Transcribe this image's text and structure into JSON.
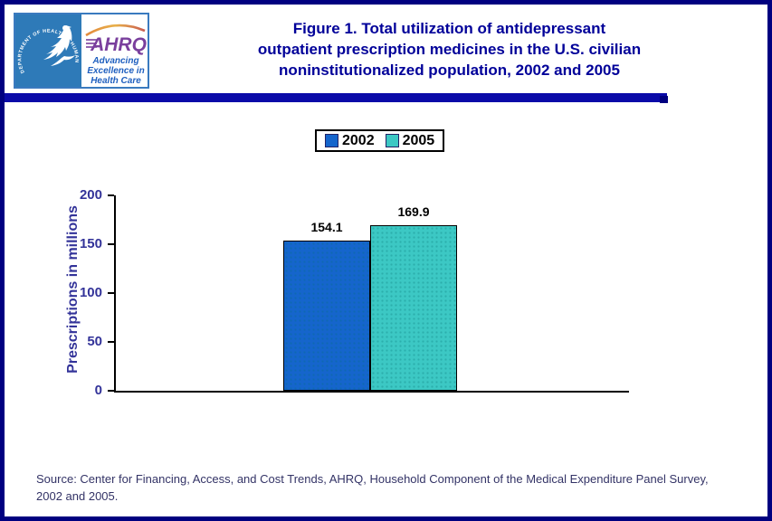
{
  "header": {
    "title_lines": [
      "Figure 1. Total utilization of antidepressant",
      "outpatient prescription medicines in the U.S. civilian",
      "noninstitutionalized population, 2002 and 2005"
    ],
    "logo": {
      "hhs_circle_text": "DEPARTMENT OF HEALTH & HUMAN SERVICES • USA",
      "ahrq": "AHRQ",
      "tagline": [
        "Advancing",
        "Excellence in",
        "Health Care"
      ],
      "ahrq_color": "#7a3f9d",
      "tagline_color": "#1f5fbf",
      "hhs_blue": "#2e7ab8"
    }
  },
  "chart_data": {
    "type": "bar",
    "title": "Figure 1. Total utilization of antidepressant outpatient prescription medicines in the U.S. civilian noninstitutionalized population, 2002 and 2005",
    "categories": [
      "2002",
      "2005"
    ],
    "series": [
      {
        "name": "2002",
        "value": 154.1,
        "color": "#1565cc"
      },
      {
        "name": "2005",
        "value": 169.9,
        "color": "#3cc8c4"
      }
    ],
    "value_labels": [
      "154.1",
      "169.9"
    ],
    "xlabel": "",
    "ylabel": "Prescriptions in millions",
    "ylim": [
      0,
      200
    ],
    "yticks": [
      0,
      50,
      100,
      150,
      200
    ],
    "grid": false,
    "legend_position": "top-center"
  },
  "source": {
    "lines": [
      "Source: Center for Financing, Access, and Cost Trends, AHRQ, Household Component of the Medical Expenditure Panel Survey,",
      "2002 and 2005."
    ]
  },
  "colors": {
    "page_border": "#000080",
    "divider": "#0a0aa8",
    "title_text": "#000099",
    "axis_text": "#333399",
    "source_text": "#333366"
  }
}
